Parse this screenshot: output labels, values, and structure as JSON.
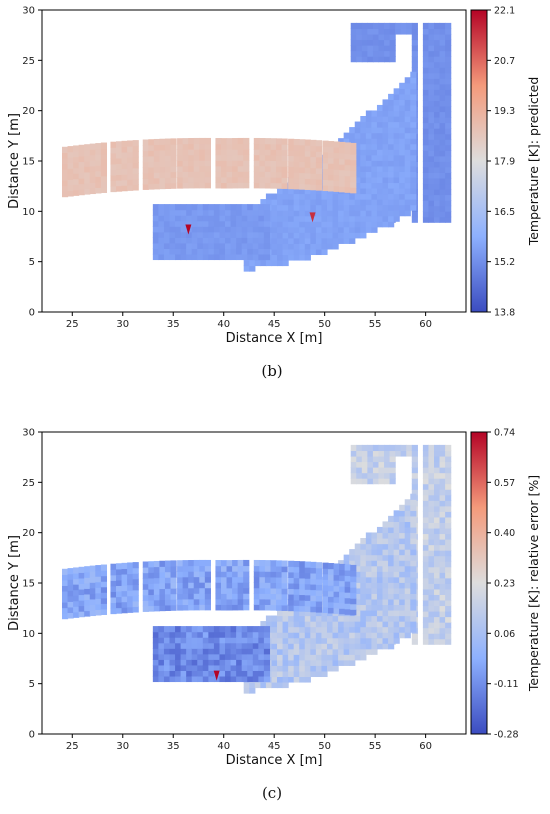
{
  "chart_data": [
    {
      "type": "heatmap",
      "panel_label": "(b)",
      "xlabel": "Distance X [m]",
      "ylabel": "Distance Y [m]",
      "xlim": [
        22,
        64
      ],
      "ylim": [
        0,
        30
      ],
      "xticks": [
        25,
        30,
        35,
        40,
        45,
        50,
        55,
        60
      ],
      "yticks": [
        0,
        5,
        10,
        15,
        20,
        25,
        30
      ],
      "colorbar": {
        "label": "Temperature [K]: predicted",
        "range": [
          13.8,
          22.1
        ],
        "ticks": [
          "13.8",
          "15.2",
          "16.5",
          "17.9",
          "19.3",
          "20.7",
          "22.1"
        ],
        "colormap": "coolwarm"
      },
      "regions": [
        {
          "name": "arc-segment",
          "value": 18.8
        },
        {
          "name": "lower-block",
          "value": 15.4
        },
        {
          "name": "diagonal-bands",
          "value": 15.6
        },
        {
          "name": "tower",
          "value": 15.2
        }
      ],
      "hotspots": [
        {
          "x": 36.5,
          "y": 7.9,
          "value": 22.1
        },
        {
          "x": 48.8,
          "y": 9.1,
          "value": 21.5
        }
      ]
    },
    {
      "type": "heatmap",
      "panel_label": "(c)",
      "xlabel": "Distance X [m]",
      "ylabel": "Distance Y [m]",
      "xlim": [
        22,
        64
      ],
      "ylim": [
        0,
        30
      ],
      "xticks": [
        25,
        30,
        35,
        40,
        45,
        50,
        55,
        60
      ],
      "yticks": [
        0,
        5,
        10,
        15,
        20,
        25,
        30
      ],
      "colorbar": {
        "label": "Temperature [K]: relative error [%]",
        "range": [
          -0.28,
          0.74
        ],
        "ticks": [
          "-0.28",
          "-0.11",
          "0.06",
          "0.23",
          "0.40",
          "0.57",
          "0.74"
        ],
        "colormap": "coolwarm"
      },
      "regions": [
        {
          "name": "arc-segment",
          "value": -0.05
        },
        {
          "name": "lower-block",
          "value": -0.12
        },
        {
          "name": "diagonal-bands",
          "value": 0.1
        },
        {
          "name": "tower",
          "value": 0.15
        }
      ],
      "hotspots": [
        {
          "x": 39.3,
          "y": 5.5,
          "value": 0.74
        }
      ]
    }
  ]
}
